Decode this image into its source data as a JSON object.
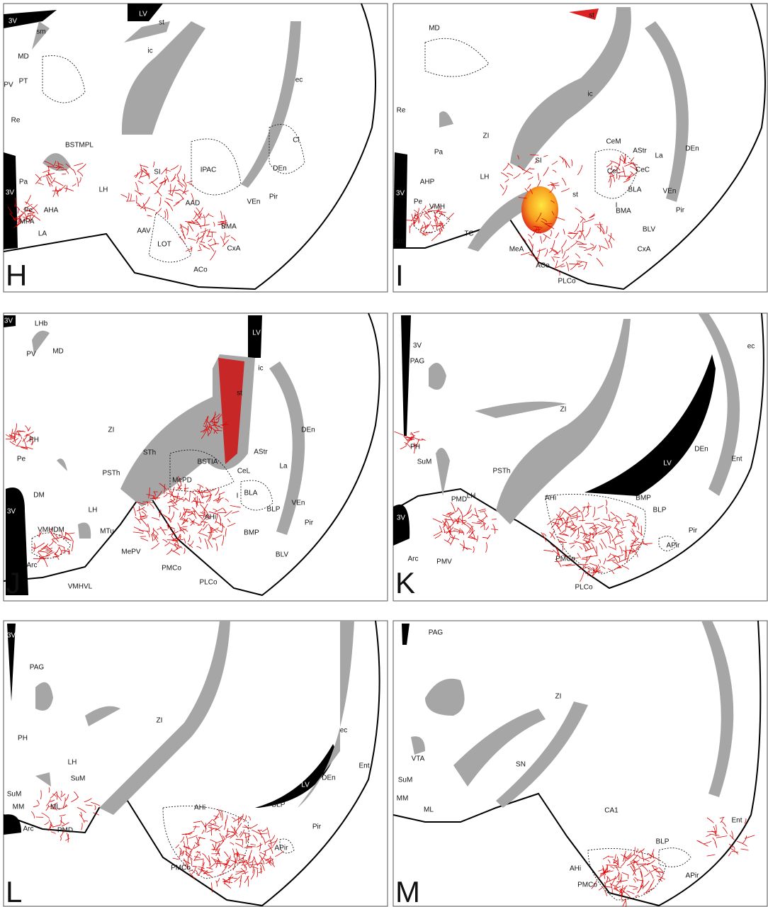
{
  "panels": [
    {
      "letter": "H",
      "labels": [
        "3V",
        "sm",
        "LV",
        "st",
        "ic",
        "MD",
        "PT",
        "PV",
        "Re",
        "ec",
        "Cl",
        "BSTMPL",
        "SI",
        "IPAC",
        "DEn",
        "Pa",
        "LH",
        "3V",
        "Pir",
        "VEn",
        "AHA",
        "Pe",
        "AAD",
        "MPA",
        "BMA",
        "LA",
        "AAV",
        "LOT",
        "CxA",
        "ACo"
      ]
    },
    {
      "letter": "I",
      "labels": [
        "st",
        "MD",
        "ic",
        "Re",
        "CeM",
        "AStr",
        "ZI",
        "DEn",
        "Pa",
        "SI",
        "La",
        "CeL",
        "CeC",
        "AHP",
        "LH",
        "BLA",
        "3V",
        "st",
        "VEn",
        "VMH",
        "Pe",
        "I",
        "BMA",
        "Pir",
        "BLV",
        "TC",
        "Arc",
        "MeA",
        "CxA",
        "ACo",
        "PLCo"
      ]
    },
    {
      "letter": "J",
      "labels": [
        "3V",
        "LHb",
        "LV",
        "PV",
        "MD",
        "ic",
        "st",
        "ZI",
        "PH",
        "STh",
        "AStr",
        "DEn",
        "BSTIA",
        "CeL",
        "La",
        "Pe",
        "MePD",
        "PSTh",
        "BLA",
        "I",
        "DM",
        "LH",
        "BLP",
        "VEn",
        "AHi",
        "3V",
        "Pir",
        "VMHDM",
        "MTu",
        "BMP",
        "MePV",
        "Arc",
        "BLV",
        "PMCo",
        "VMHVL",
        "PLCo"
      ]
    },
    {
      "letter": "K",
      "labels": [
        "3V",
        "PAG",
        "ec",
        "ZI",
        "DEn",
        "Ent",
        "PH",
        "SuM",
        "LV",
        "PSTh",
        "PMD",
        "LH",
        "AHi",
        "BMP",
        "BLP",
        "3V",
        "Pir",
        "APir",
        "Arc",
        "PMV",
        "PMCo",
        "PLCo"
      ]
    },
    {
      "letter": "L",
      "labels": [
        "3V",
        "PAG",
        "ZI",
        "PH",
        "ec",
        "LH",
        "Ent",
        "LV",
        "SuM",
        "DEn",
        "SuM",
        "AHi",
        "MM",
        "ML",
        "BLP",
        "Pir",
        "Arc",
        "PMD",
        "APir",
        "PMCo"
      ]
    },
    {
      "letter": "M",
      "labels": [
        "PAG",
        "ZI",
        "VTA",
        "SN",
        "SuM",
        "MM",
        "ML",
        "CA1",
        "Ent",
        "BLP",
        "AHi",
        "APir",
        "PMCo"
      ]
    }
  ]
}
